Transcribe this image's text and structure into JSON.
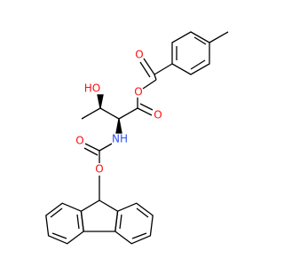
{
  "atoms": [
    {
      "label": "O"
    },
    {
      "label": "O"
    },
    {
      "label": "O"
    },
    {
      "label": "HO"
    },
    {
      "label": "NH"
    },
    {
      "label": "O"
    },
    {
      "label": "O"
    }
  ]
}
